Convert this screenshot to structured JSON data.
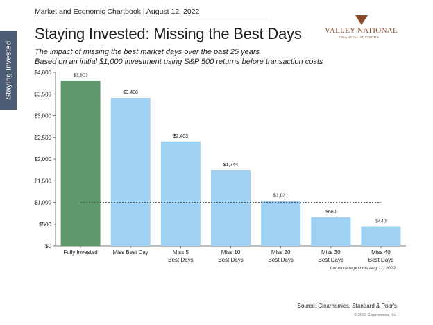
{
  "header": {
    "chartbook": "Market and Economic Chartbook | August 12, 2022"
  },
  "side_tab": {
    "label": "Staying Invested"
  },
  "logo": {
    "name": "VALLEY NATIONAL",
    "tagline": "FINANCIAL ADVISORS"
  },
  "footer": {
    "note": "Latest data point is Aug 11, 2022",
    "source": "Source: Clearnomics, Standard & Poor's",
    "copyright": "© 2022 Clearnomics, Inc."
  },
  "chart_data": {
    "type": "bar",
    "title": "Staying Invested: Missing the Best Days",
    "subtitle": [
      "The impact of missing the best market days over the past 25 years",
      "Based on an initial $1,000 investment using S&P 500 returns before transaction costs"
    ],
    "categories": [
      [
        "Fully Invested"
      ],
      [
        "Miss Best Day"
      ],
      [
        "Miss 5",
        "Best Days"
      ],
      [
        "Miss 10",
        "Best Days"
      ],
      [
        "Miss 20",
        "Best Days"
      ],
      [
        "Miss 30",
        "Best Days"
      ],
      [
        "Miss 40",
        "Best Days"
      ]
    ],
    "values": [
      3803,
      3408,
      2403,
      1744,
      1031,
      660,
      440
    ],
    "data_labels": [
      "$3,803",
      "$3,408",
      "$2,403",
      "$1,744",
      "$1,031",
      "$660",
      "$440"
    ],
    "yticks": [
      0,
      500,
      1000,
      1500,
      2000,
      2500,
      3000,
      3500,
      4000
    ],
    "ytick_labels": [
      "$0",
      "$500",
      "$1,000",
      "$1,500",
      "$2,000",
      "$2,500",
      "$3,000",
      "$3,500",
      "$4,000"
    ],
    "ylim": [
      0,
      4000
    ],
    "reference_line": 1000,
    "colors": {
      "first_bar": "#5e9a6c",
      "other_bars": "#9fd1f5",
      "reference_line": "#555555",
      "axis": "#7a7a7a"
    },
    "grid": false,
    "legend": "none"
  }
}
